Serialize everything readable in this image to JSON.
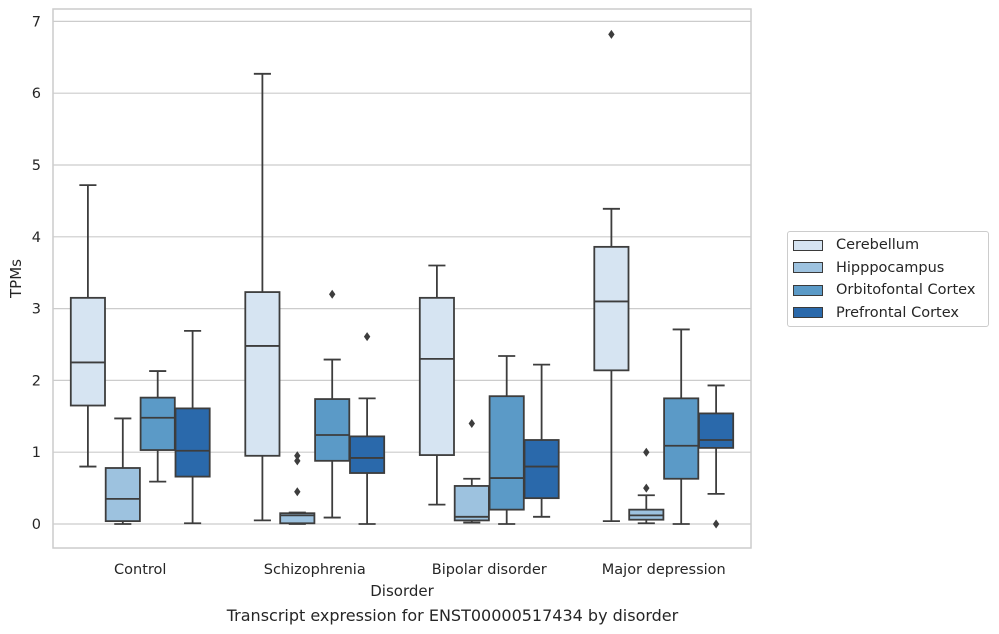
{
  "chart_data": {
    "type": "box",
    "title": "",
    "caption": "Transcript expression for ENST00000517434 by disorder",
    "xlabel": "Disorder",
    "ylabel": "TPMs",
    "ylim": [
      -0.33,
      7.17
    ],
    "yticks": [
      "0",
      "1",
      "2",
      "3",
      "4",
      "5",
      "6",
      "7"
    ],
    "grid": true,
    "legend_position": "right",
    "categories": [
      "Control",
      "Schizophrenia",
      "Bipolar disorder",
      "Major depression"
    ],
    "series": [
      {
        "name": "Cerebellum",
        "color": "#d6e4f2",
        "boxes": [
          {
            "whislo": 0.8,
            "q1": 1.65,
            "med": 2.25,
            "q3": 3.15,
            "whishi": 4.72,
            "fliers": []
          },
          {
            "whislo": 0.05,
            "q1": 0.95,
            "med": 2.48,
            "q3": 3.23,
            "whishi": 6.27,
            "fliers": []
          },
          {
            "whislo": 0.27,
            "q1": 0.96,
            "med": 2.3,
            "q3": 3.15,
            "whishi": 3.6,
            "fliers": []
          },
          {
            "whislo": 0.04,
            "q1": 2.14,
            "med": 3.1,
            "q3": 3.86,
            "whishi": 4.39,
            "fliers": [
              6.82
            ]
          }
        ]
      },
      {
        "name": "Hipppocampus",
        "color": "#9dc2df",
        "boxes": [
          {
            "whislo": 0.0,
            "q1": 0.04,
            "med": 0.35,
            "q3": 0.78,
            "whishi": 1.47,
            "fliers": []
          },
          {
            "whislo": 0.0,
            "q1": 0.01,
            "med": 0.12,
            "q3": 0.15,
            "whishi": 0.16,
            "fliers": [
              0.95,
              0.88,
              0.45
            ]
          },
          {
            "whislo": 0.02,
            "q1": 0.05,
            "med": 0.1,
            "q3": 0.53,
            "whishi": 0.63,
            "fliers": [
              1.4
            ]
          },
          {
            "whislo": 0.01,
            "q1": 0.06,
            "med": 0.12,
            "q3": 0.2,
            "whishi": 0.4,
            "fliers": [
              1.0,
              0.5
            ]
          }
        ]
      },
      {
        "name": "Orbitofontal Cortex",
        "color": "#5b9ac7",
        "boxes": [
          {
            "whislo": 0.59,
            "q1": 1.03,
            "med": 1.48,
            "q3": 1.76,
            "whishi": 2.13,
            "fliers": []
          },
          {
            "whislo": 0.09,
            "q1": 0.88,
            "med": 1.24,
            "q3": 1.74,
            "whishi": 2.29,
            "fliers": [
              3.2
            ]
          },
          {
            "whislo": 0.0,
            "q1": 0.2,
            "med": 0.64,
            "q3": 1.78,
            "whishi": 2.34,
            "fliers": []
          },
          {
            "whislo": 0.0,
            "q1": 0.63,
            "med": 1.09,
            "q3": 1.75,
            "whishi": 2.71,
            "fliers": []
          }
        ]
      },
      {
        "name": "Prefrontal Cortex",
        "color": "#2a69ab",
        "boxes": [
          {
            "whislo": 0.01,
            "q1": 0.66,
            "med": 1.02,
            "q3": 1.61,
            "whishi": 2.69,
            "fliers": []
          },
          {
            "whislo": 0.0,
            "q1": 0.71,
            "med": 0.92,
            "q3": 1.22,
            "whishi": 1.75,
            "fliers": [
              2.61
            ]
          },
          {
            "whislo": 0.1,
            "q1": 0.36,
            "med": 0.8,
            "q3": 1.17,
            "whishi": 2.22,
            "fliers": []
          },
          {
            "whislo": 0.42,
            "q1": 1.06,
            "med": 1.17,
            "q3": 1.54,
            "whishi": 1.93,
            "fliers": [
              0.0
            ]
          }
        ]
      }
    ]
  }
}
